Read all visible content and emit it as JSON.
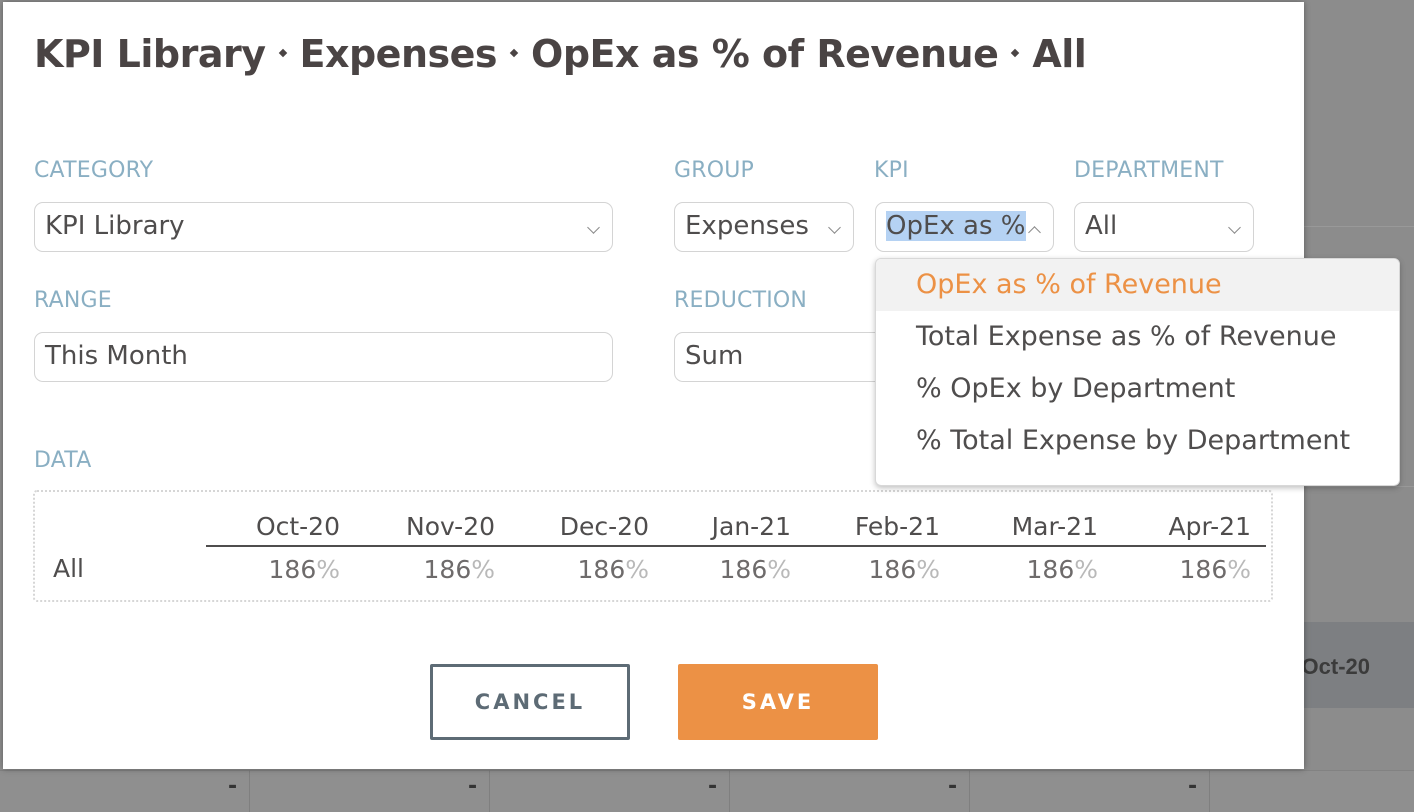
{
  "background": {
    "header_cell": "Oct-20",
    "row_dashes": [
      "-",
      "-",
      "-",
      "-",
      "-"
    ]
  },
  "modal": {
    "breadcrumb": [
      "KPI Library",
      "Expenses",
      "OpEx as % of Revenue",
      "All"
    ],
    "labels": {
      "category": "CATEGORY",
      "group": "GROUP",
      "kpi": "KPI",
      "department": "DEPARTMENT",
      "range": "RANGE",
      "reduction": "REDUCTION",
      "data": "DATA"
    },
    "fields": {
      "category": "KPI Library",
      "group": "Expenses",
      "kpi": "OpEx as %",
      "department": "All",
      "range": "This Month",
      "reduction": "Sum"
    },
    "kpi_dropdown": {
      "options": [
        "OpEx as % of Revenue",
        "Total Expense as % of Revenue",
        "% OpEx by Department",
        "% Total Expense by Department"
      ],
      "highlighted_index": 0
    },
    "data_table": {
      "columns": [
        "Oct-20",
        "Nov-20",
        "Dec-20",
        "Jan-21",
        "Feb-21",
        "Mar-21",
        "Apr-21"
      ],
      "rows": [
        {
          "label": "All",
          "values": [
            "186",
            "186",
            "186",
            "186",
            "186",
            "186",
            "186"
          ],
          "unit": "%"
        }
      ]
    },
    "buttons": {
      "cancel": "CANCEL",
      "save": "SAVE"
    },
    "colors": {
      "accent": "#ec9145",
      "label": "#8aafc3",
      "text": "#4f4d4d"
    }
  }
}
